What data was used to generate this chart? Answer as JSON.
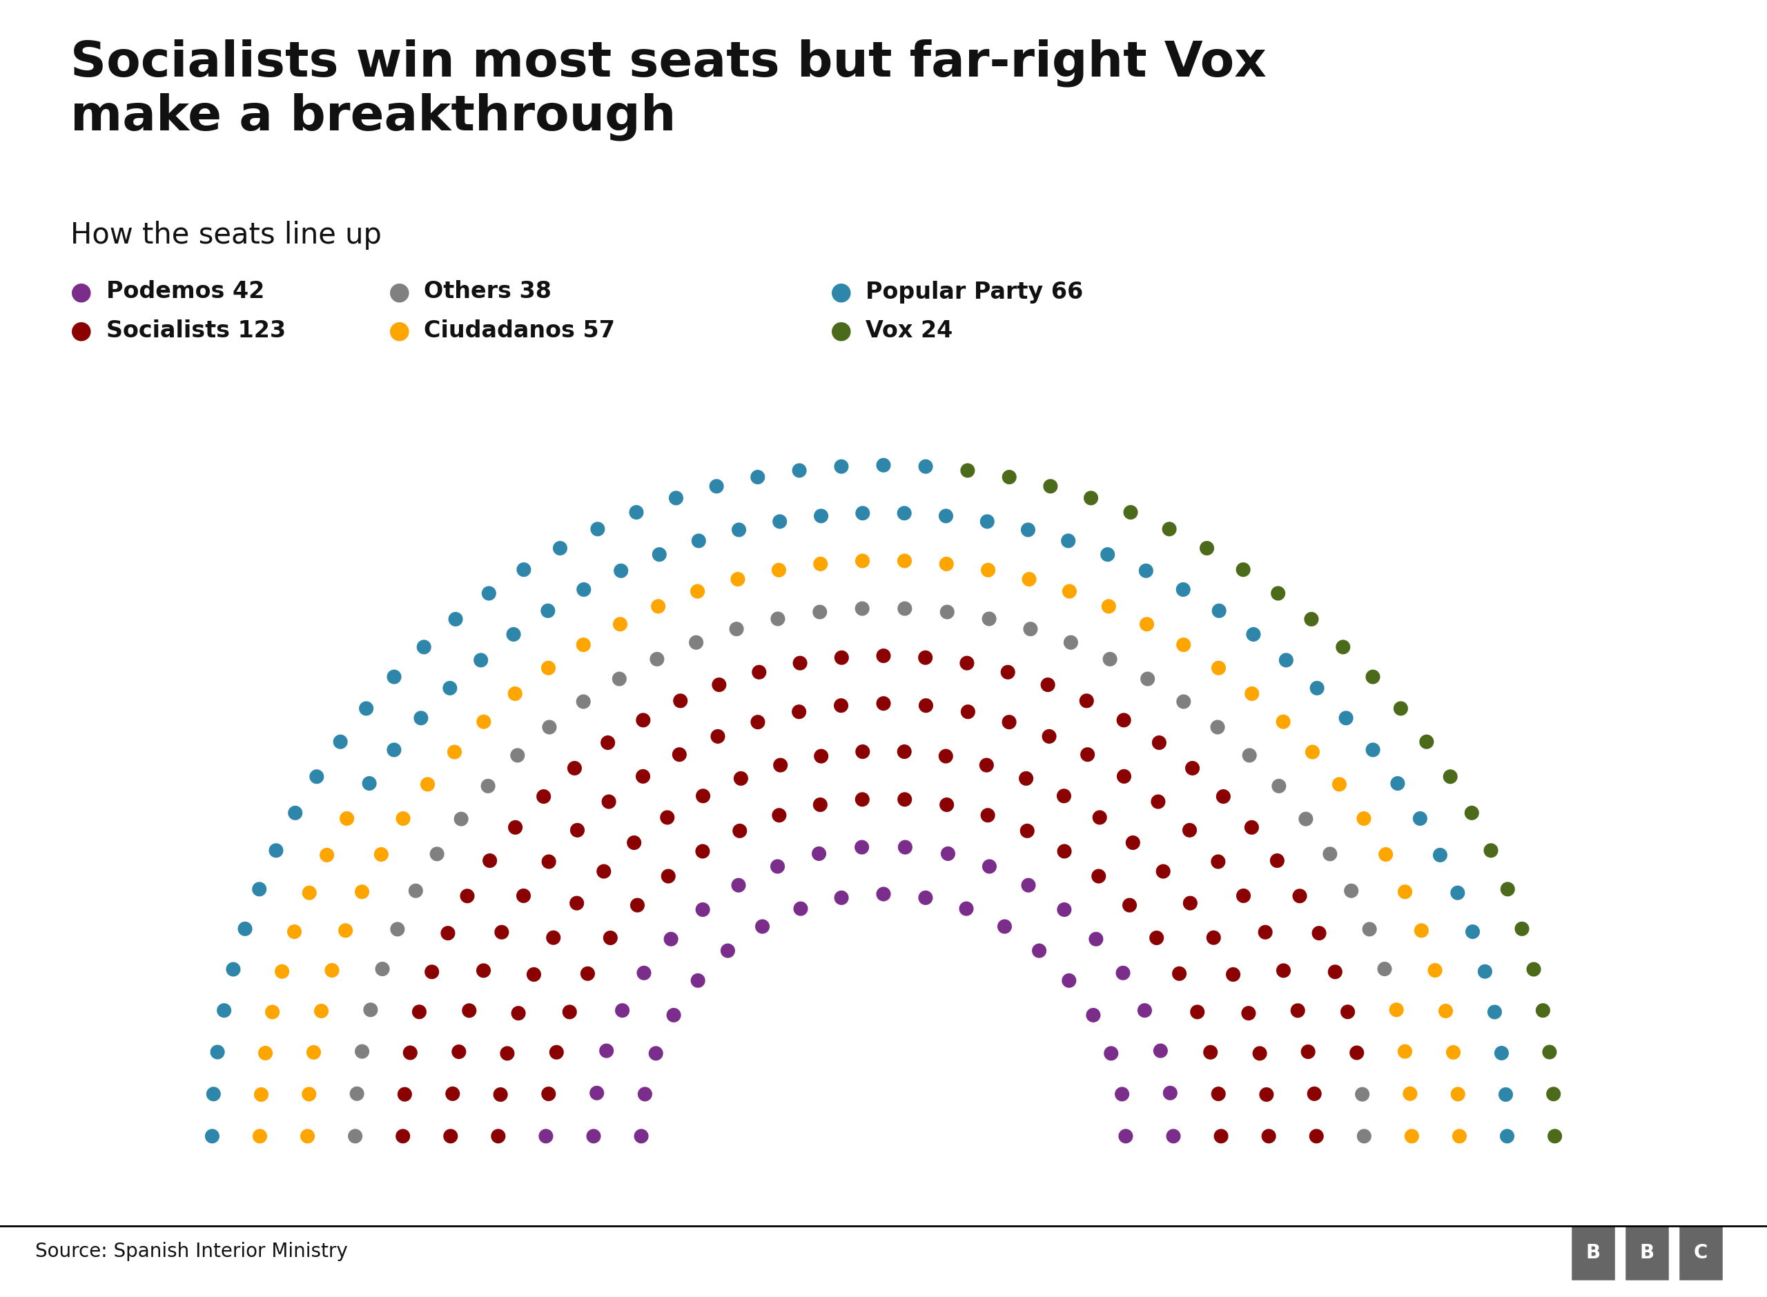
{
  "title": "Socialists win most seats but far-right Vox\nmake a breakthrough",
  "subtitle": "How the seats line up",
  "source": "Source: Spanish Interior Ministry",
  "parties": [
    {
      "name": "Podemos",
      "seats": 42,
      "color": "#7B2D8B"
    },
    {
      "name": "Socialists",
      "seats": 123,
      "color": "#8B0000"
    },
    {
      "name": "Others",
      "seats": 38,
      "color": "#808080"
    },
    {
      "name": "Ciudadanos",
      "seats": 57,
      "color": "#FFA500"
    },
    {
      "name": "Popular Party",
      "seats": 66,
      "color": "#2E86AB"
    },
    {
      "name": "Vox",
      "seats": 24,
      "color": "#4B6B1A"
    }
  ],
  "legend_row1": [
    {
      "name": "Podemos 42",
      "color": "#7B2D8B"
    },
    {
      "name": "Others 38",
      "color": "#808080"
    },
    {
      "name": "Popular Party 66",
      "color": "#2E86AB"
    }
  ],
  "legend_row2": [
    {
      "name": "Socialists 123",
      "color": "#8B0000"
    },
    {
      "name": "Ciudadanos 57",
      "color": "#FFA500"
    },
    {
      "name": "Vox 24",
      "color": "#4B6B1A"
    }
  ],
  "background_color": "#FFFFFF",
  "title_fontsize": 52,
  "subtitle_fontsize": 30,
  "legend_fontsize": 24,
  "source_fontsize": 20,
  "n_rows": 10,
  "total_seats": 350
}
